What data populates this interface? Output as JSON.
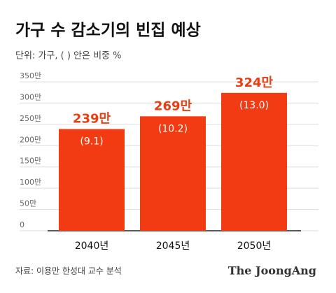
{
  "chart_data": {
    "type": "bar",
    "title": "가구 수 감소기의 빈집 예상",
    "subtitle": "단위: 가구, ( ) 안은 비중 %",
    "categories": [
      "2040년",
      "2045년",
      "2050년"
    ],
    "values": [
      239,
      269,
      324
    ],
    "value_labels": [
      "239만",
      "269만",
      "324만"
    ],
    "share_labels": [
      "(9.1)",
      "(10.2)",
      "(13.0)"
    ],
    "color": "#f23b12",
    "ylim": [
      0,
      350
    ],
    "yticks": [
      0,
      {
        "value": 50,
        "label": "50만"
      },
      {
        "value": 100,
        "label": "100만"
      },
      {
        "value": 150,
        "label": "150만"
      },
      {
        "value": 200,
        "label": "200만"
      },
      {
        "value": 250,
        "label": "250만"
      },
      {
        "value": 300,
        "label": "300만"
      },
      {
        "value": 350,
        "label": "350만"
      }
    ],
    "grid": true,
    "source": "자료: 이용만 한성대 교수 분석",
    "brand": "The JoongAng"
  }
}
